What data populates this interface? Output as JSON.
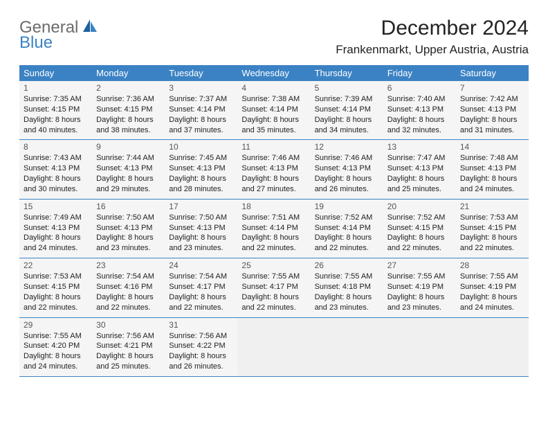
{
  "logo": {
    "general": "General",
    "blue": "Blue"
  },
  "title": "December 2024",
  "location": "Frankenmarkt, Upper Austria, Austria",
  "colors": {
    "header_bg": "#3b82c4",
    "header_text": "#ffffff",
    "cell_bg": "#f5f5f5",
    "empty_bg": "#f0f0f0",
    "border": "#3b82c4",
    "logo_gray": "#6b6b6b",
    "logo_blue": "#3b82c4"
  },
  "day_headers": [
    "Sunday",
    "Monday",
    "Tuesday",
    "Wednesday",
    "Thursday",
    "Friday",
    "Saturday"
  ],
  "weeks": [
    [
      {
        "n": "1",
        "sr": "Sunrise: 7:35 AM",
        "ss": "Sunset: 4:15 PM",
        "d1": "Daylight: 8 hours",
        "d2": "and 40 minutes."
      },
      {
        "n": "2",
        "sr": "Sunrise: 7:36 AM",
        "ss": "Sunset: 4:15 PM",
        "d1": "Daylight: 8 hours",
        "d2": "and 38 minutes."
      },
      {
        "n": "3",
        "sr": "Sunrise: 7:37 AM",
        "ss": "Sunset: 4:14 PM",
        "d1": "Daylight: 8 hours",
        "d2": "and 37 minutes."
      },
      {
        "n": "4",
        "sr": "Sunrise: 7:38 AM",
        "ss": "Sunset: 4:14 PM",
        "d1": "Daylight: 8 hours",
        "d2": "and 35 minutes."
      },
      {
        "n": "5",
        "sr": "Sunrise: 7:39 AM",
        "ss": "Sunset: 4:14 PM",
        "d1": "Daylight: 8 hours",
        "d2": "and 34 minutes."
      },
      {
        "n": "6",
        "sr": "Sunrise: 7:40 AM",
        "ss": "Sunset: 4:13 PM",
        "d1": "Daylight: 8 hours",
        "d2": "and 32 minutes."
      },
      {
        "n": "7",
        "sr": "Sunrise: 7:42 AM",
        "ss": "Sunset: 4:13 PM",
        "d1": "Daylight: 8 hours",
        "d2": "and 31 minutes."
      }
    ],
    [
      {
        "n": "8",
        "sr": "Sunrise: 7:43 AM",
        "ss": "Sunset: 4:13 PM",
        "d1": "Daylight: 8 hours",
        "d2": "and 30 minutes."
      },
      {
        "n": "9",
        "sr": "Sunrise: 7:44 AM",
        "ss": "Sunset: 4:13 PM",
        "d1": "Daylight: 8 hours",
        "d2": "and 29 minutes."
      },
      {
        "n": "10",
        "sr": "Sunrise: 7:45 AM",
        "ss": "Sunset: 4:13 PM",
        "d1": "Daylight: 8 hours",
        "d2": "and 28 minutes."
      },
      {
        "n": "11",
        "sr": "Sunrise: 7:46 AM",
        "ss": "Sunset: 4:13 PM",
        "d1": "Daylight: 8 hours",
        "d2": "and 27 minutes."
      },
      {
        "n": "12",
        "sr": "Sunrise: 7:46 AM",
        "ss": "Sunset: 4:13 PM",
        "d1": "Daylight: 8 hours",
        "d2": "and 26 minutes."
      },
      {
        "n": "13",
        "sr": "Sunrise: 7:47 AM",
        "ss": "Sunset: 4:13 PM",
        "d1": "Daylight: 8 hours",
        "d2": "and 25 minutes."
      },
      {
        "n": "14",
        "sr": "Sunrise: 7:48 AM",
        "ss": "Sunset: 4:13 PM",
        "d1": "Daylight: 8 hours",
        "d2": "and 24 minutes."
      }
    ],
    [
      {
        "n": "15",
        "sr": "Sunrise: 7:49 AM",
        "ss": "Sunset: 4:13 PM",
        "d1": "Daylight: 8 hours",
        "d2": "and 24 minutes."
      },
      {
        "n": "16",
        "sr": "Sunrise: 7:50 AM",
        "ss": "Sunset: 4:13 PM",
        "d1": "Daylight: 8 hours",
        "d2": "and 23 minutes."
      },
      {
        "n": "17",
        "sr": "Sunrise: 7:50 AM",
        "ss": "Sunset: 4:13 PM",
        "d1": "Daylight: 8 hours",
        "d2": "and 23 minutes."
      },
      {
        "n": "18",
        "sr": "Sunrise: 7:51 AM",
        "ss": "Sunset: 4:14 PM",
        "d1": "Daylight: 8 hours",
        "d2": "and 22 minutes."
      },
      {
        "n": "19",
        "sr": "Sunrise: 7:52 AM",
        "ss": "Sunset: 4:14 PM",
        "d1": "Daylight: 8 hours",
        "d2": "and 22 minutes."
      },
      {
        "n": "20",
        "sr": "Sunrise: 7:52 AM",
        "ss": "Sunset: 4:15 PM",
        "d1": "Daylight: 8 hours",
        "d2": "and 22 minutes."
      },
      {
        "n": "21",
        "sr": "Sunrise: 7:53 AM",
        "ss": "Sunset: 4:15 PM",
        "d1": "Daylight: 8 hours",
        "d2": "and 22 minutes."
      }
    ],
    [
      {
        "n": "22",
        "sr": "Sunrise: 7:53 AM",
        "ss": "Sunset: 4:15 PM",
        "d1": "Daylight: 8 hours",
        "d2": "and 22 minutes."
      },
      {
        "n": "23",
        "sr": "Sunrise: 7:54 AM",
        "ss": "Sunset: 4:16 PM",
        "d1": "Daylight: 8 hours",
        "d2": "and 22 minutes."
      },
      {
        "n": "24",
        "sr": "Sunrise: 7:54 AM",
        "ss": "Sunset: 4:17 PM",
        "d1": "Daylight: 8 hours",
        "d2": "and 22 minutes."
      },
      {
        "n": "25",
        "sr": "Sunrise: 7:55 AM",
        "ss": "Sunset: 4:17 PM",
        "d1": "Daylight: 8 hours",
        "d2": "and 22 minutes."
      },
      {
        "n": "26",
        "sr": "Sunrise: 7:55 AM",
        "ss": "Sunset: 4:18 PM",
        "d1": "Daylight: 8 hours",
        "d2": "and 23 minutes."
      },
      {
        "n": "27",
        "sr": "Sunrise: 7:55 AM",
        "ss": "Sunset: 4:19 PM",
        "d1": "Daylight: 8 hours",
        "d2": "and 23 minutes."
      },
      {
        "n": "28",
        "sr": "Sunrise: 7:55 AM",
        "ss": "Sunset: 4:19 PM",
        "d1": "Daylight: 8 hours",
        "d2": "and 24 minutes."
      }
    ],
    [
      {
        "n": "29",
        "sr": "Sunrise: 7:55 AM",
        "ss": "Sunset: 4:20 PM",
        "d1": "Daylight: 8 hours",
        "d2": "and 24 minutes."
      },
      {
        "n": "30",
        "sr": "Sunrise: 7:56 AM",
        "ss": "Sunset: 4:21 PM",
        "d1": "Daylight: 8 hours",
        "d2": "and 25 minutes."
      },
      {
        "n": "31",
        "sr": "Sunrise: 7:56 AM",
        "ss": "Sunset: 4:22 PM",
        "d1": "Daylight: 8 hours",
        "d2": "and 26 minutes."
      },
      null,
      null,
      null,
      null
    ]
  ]
}
